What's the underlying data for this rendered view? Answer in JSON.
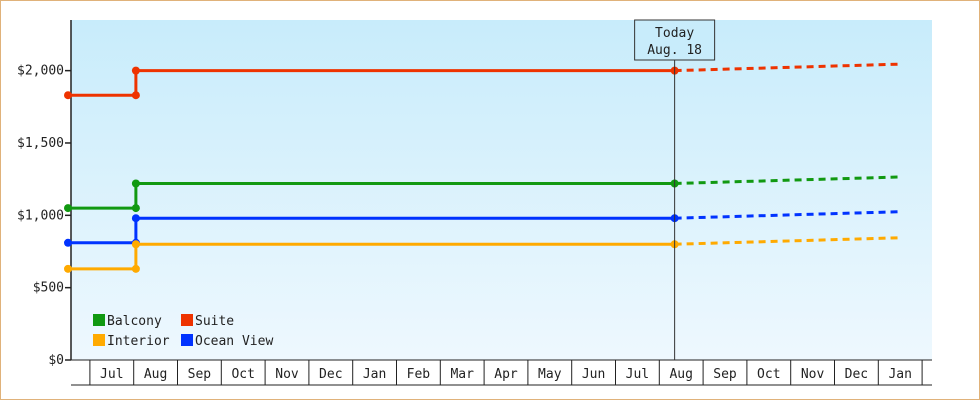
{
  "chart_data": {
    "type": "line",
    "y_ticks": [
      {
        "value": 0,
        "label": "$0"
      },
      {
        "value": 500,
        "label": "$500"
      },
      {
        "value": 1000,
        "label": "$1,000"
      },
      {
        "value": 1500,
        "label": "$1,500"
      },
      {
        "value": 2000,
        "label": "$2,000"
      }
    ],
    "ylim": [
      0,
      2350
    ],
    "x_labels": [
      "Jul",
      "Aug",
      "Sep",
      "Oct",
      "Nov",
      "Dec",
      "Jan",
      "Feb",
      "Mar",
      "Apr",
      "May",
      "Jun",
      "Jul",
      "Aug",
      "Sep",
      "Oct",
      "Nov",
      "Dec",
      "Jan"
    ],
    "today": {
      "label": "Today",
      "date": "Aug. 18"
    },
    "series": [
      {
        "name": "Suite",
        "color": "#ee3300",
        "values": [
          {
            "x": 0.0,
            "y": 1830
          },
          {
            "x": 1.55,
            "y": 1830
          },
          {
            "x": 1.55,
            "y": 2000
          },
          {
            "x": 13.85,
            "y": 2000
          }
        ],
        "forecast": [
          {
            "x": 13.85,
            "y": 2000
          },
          {
            "x": 19.0,
            "y": 2045
          }
        ]
      },
      {
        "name": "Balcony",
        "color": "#119911",
        "values": [
          {
            "x": 0.0,
            "y": 1050
          },
          {
            "x": 1.55,
            "y": 1050
          },
          {
            "x": 1.55,
            "y": 1220
          },
          {
            "x": 13.85,
            "y": 1220
          }
        ],
        "forecast": [
          {
            "x": 13.85,
            "y": 1220
          },
          {
            "x": 19.0,
            "y": 1265
          }
        ]
      },
      {
        "name": "Ocean View",
        "color": "#0033ff",
        "values": [
          {
            "x": 0.0,
            "y": 810
          },
          {
            "x": 1.55,
            "y": 810
          },
          {
            "x": 1.55,
            "y": 980
          },
          {
            "x": 13.85,
            "y": 980
          }
        ],
        "forecast": [
          {
            "x": 13.85,
            "y": 980
          },
          {
            "x": 19.0,
            "y": 1025
          }
        ]
      },
      {
        "name": "Interior",
        "color": "#ffaa00",
        "values": [
          {
            "x": 0.0,
            "y": 630
          },
          {
            "x": 1.55,
            "y": 630
          },
          {
            "x": 1.55,
            "y": 800
          },
          {
            "x": 13.85,
            "y": 800
          }
        ],
        "forecast": [
          {
            "x": 13.85,
            "y": 800
          },
          {
            "x": 19.0,
            "y": 845
          }
        ]
      }
    ],
    "legend": [
      {
        "name": "Balcony",
        "color": "#119911"
      },
      {
        "name": "Suite",
        "color": "#ee3300"
      },
      {
        "name": "Interior",
        "color": "#ffaa00"
      },
      {
        "name": "Ocean View",
        "color": "#0033ff"
      }
    ],
    "legend_position": "bottom-left",
    "colors": {
      "plot_top": "#c8ecfb",
      "plot_bottom": "#eef8fe",
      "border": "#e0b27a"
    }
  }
}
